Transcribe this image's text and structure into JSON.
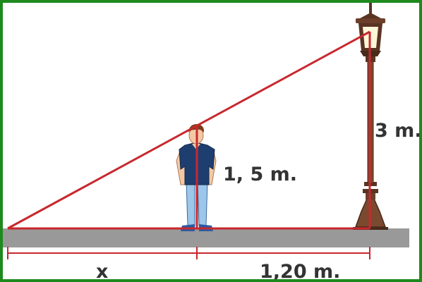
{
  "labels": {
    "lamp_height": "3 m.",
    "person_height": "1, 5 m.",
    "shadow": "x",
    "distance": "1,20 m."
  },
  "icons": {
    "lamp": "street-lamp-icon",
    "person": "person-icon"
  },
  "colors": {
    "frame": "#1e8a1e",
    "triangle": "#c8282e",
    "ground": "#999999",
    "lamp": "#6b3f2a",
    "label": "#333333"
  }
}
